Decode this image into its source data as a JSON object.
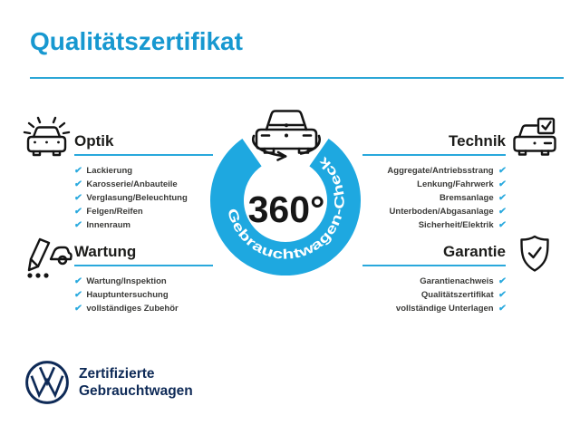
{
  "header": {
    "title": "Qualitätszertifikat"
  },
  "center": {
    "degree_label": "360°",
    "ring_label": "Gebrauchtwagen-Check"
  },
  "sections": [
    {
      "id": "optik",
      "title": "Optik",
      "icon": "shiny-car-icon",
      "items": [
        "Lackierung",
        "Karosserie/Anbauteile",
        "Verglasung/Beleuchtung",
        "Felgen/Reifen",
        "Innenraum"
      ]
    },
    {
      "id": "wartung",
      "title": "Wartung",
      "icon": "inspection-pencil-car-icon",
      "items": [
        "Wartung/Inspektion",
        "Hauptuntersuchung",
        "vollständiges Zubehör"
      ]
    },
    {
      "id": "technik",
      "title": "Technik",
      "icon": "car-checkbox-icon",
      "items": [
        "Aggregate/Antriebsstrang",
        "Lenkung/Fahrwerk",
        "Bremsanlage",
        "Unterboden/Abgasanlage",
        "Sicherheit/Elektrik"
      ]
    },
    {
      "id": "garantie",
      "title": "Garantie",
      "icon": "shield-check-icon",
      "items": [
        "Garantienachweis",
        "Qualitätszertifikat",
        "vollständige Unterlagen"
      ]
    }
  ],
  "footer": {
    "brand_line1": "Zertifizierte",
    "brand_line2": "Gebrauchtwagen",
    "logo": "vw-logo"
  },
  "icons": {
    "check": "✔"
  },
  "colors": {
    "title_blue": "#1798D0",
    "ring_blue": "#1EA8E0",
    "accent_blue": "#29A8DC",
    "check_blue": "#28A9DE",
    "navy": "#0E2A57",
    "text_dark": "#1C1C1A"
  }
}
